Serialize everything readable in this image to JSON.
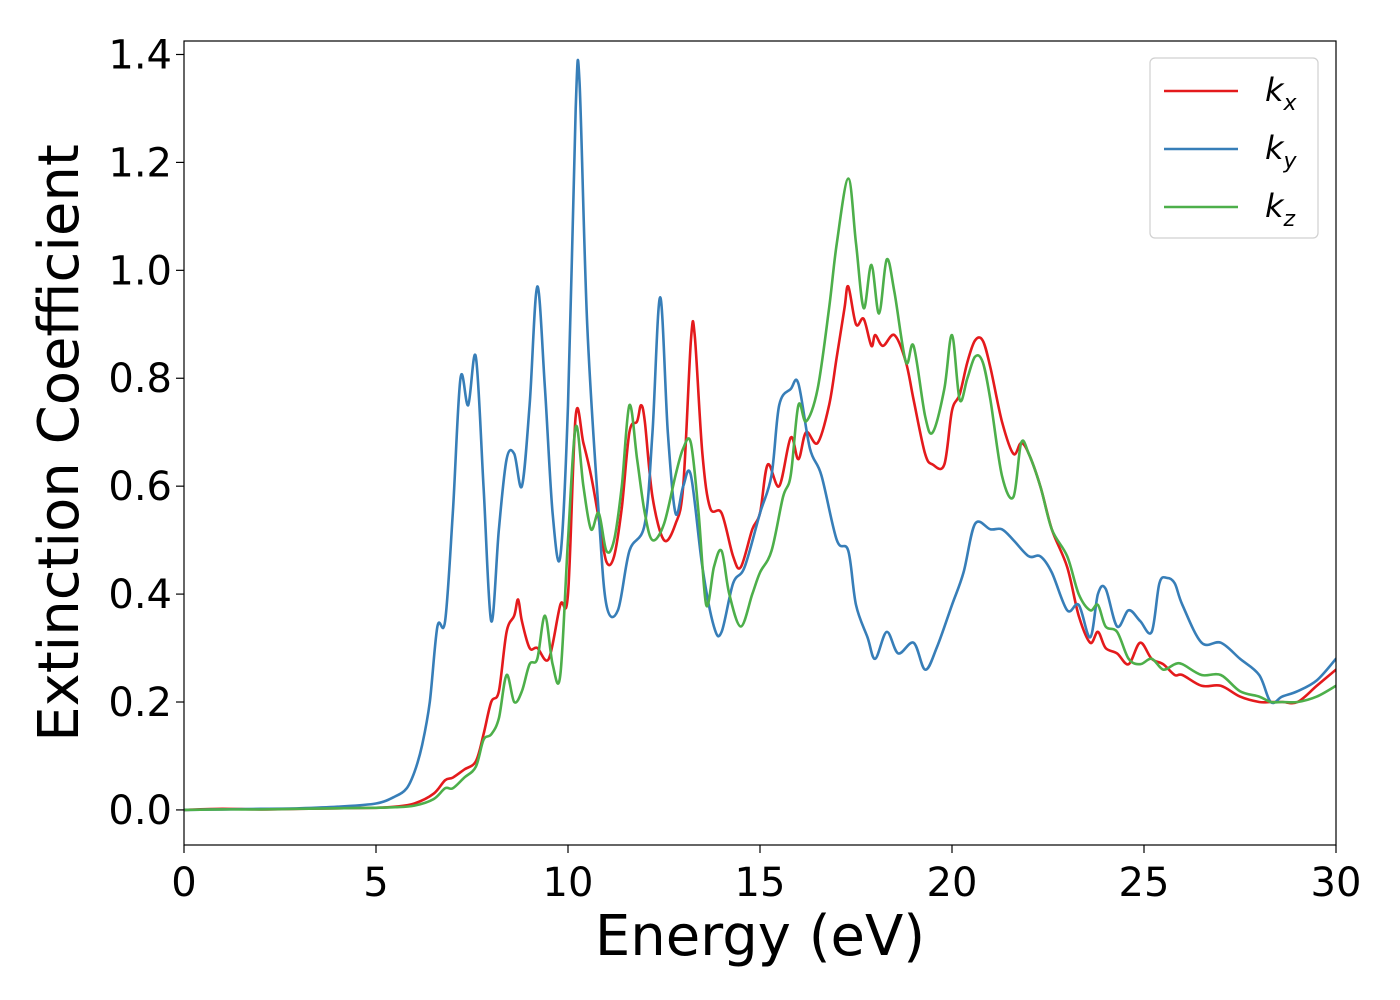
{
  "chart_data": {
    "type": "line",
    "title": "",
    "xlabel": "Energy (eV)",
    "ylabel": "Extinction Coefficient",
    "xlim": [
      0,
      30
    ],
    "ylim": [
      -0.065,
      1.425
    ],
    "xticks": [
      0,
      5,
      10,
      15,
      20,
      25,
      30
    ],
    "xtick_labels": [
      "0",
      "5",
      "10",
      "15",
      "20",
      "25",
      "30"
    ],
    "yticks": [
      0.0,
      0.2,
      0.4,
      0.6,
      0.8,
      1.0,
      1.2,
      1.4
    ],
    "ytick_labels": [
      "0.0",
      "0.2",
      "0.4",
      "0.6",
      "0.8",
      "1.0",
      "1.2",
      "1.4"
    ],
    "grid": false,
    "legend_position": "top-right",
    "legend": [
      {
        "base": "k",
        "sub": "x"
      },
      {
        "base": "k",
        "sub": "y"
      },
      {
        "base": "k",
        "sub": "z"
      }
    ],
    "series": [
      {
        "color": "#e41a1c",
        "x": [
          0,
          1,
          2,
          3,
          4,
          5,
          5.5,
          6.0,
          6.5,
          6.8,
          7.0,
          7.3,
          7.6,
          7.8,
          8.0,
          8.2,
          8.4,
          8.6,
          8.7,
          8.8,
          9.0,
          9.2,
          9.5,
          9.8,
          10.0,
          10.2,
          10.4,
          10.6,
          10.8,
          11.0,
          11.2,
          11.4,
          11.6,
          11.8,
          11.9,
          12.0,
          12.2,
          12.5,
          12.8,
          13.0,
          13.2,
          13.3,
          13.5,
          13.7,
          14.0,
          14.3,
          14.5,
          14.8,
          15.0,
          15.2,
          15.5,
          15.8,
          16.0,
          16.2,
          16.5,
          16.8,
          17.0,
          17.2,
          17.3,
          17.5,
          17.7,
          17.9,
          18.0,
          18.2,
          18.5,
          18.8,
          19.0,
          19.3,
          19.5,
          19.8,
          20.0,
          20.2,
          20.4,
          20.6,
          20.8,
          21.0,
          21.3,
          21.6,
          21.8,
          22.0,
          22.3,
          22.6,
          23.0,
          23.3,
          23.6,
          23.8,
          24.0,
          24.3,
          24.6,
          24.9,
          25.2,
          25.5,
          25.8,
          26.0,
          26.5,
          27.0,
          27.5,
          28.0,
          28.3,
          28.6,
          29.0,
          29.5,
          30.0
        ],
        "y": [
          0.0,
          0.002,
          0.001,
          0.002,
          0.003,
          0.004,
          0.006,
          0.012,
          0.03,
          0.055,
          0.06,
          0.075,
          0.09,
          0.14,
          0.2,
          0.22,
          0.33,
          0.36,
          0.39,
          0.35,
          0.3,
          0.3,
          0.28,
          0.38,
          0.4,
          0.73,
          0.68,
          0.62,
          0.54,
          0.46,
          0.47,
          0.56,
          0.7,
          0.72,
          0.75,
          0.72,
          0.58,
          0.5,
          0.53,
          0.6,
          0.87,
          0.88,
          0.66,
          0.56,
          0.55,
          0.47,
          0.45,
          0.52,
          0.55,
          0.64,
          0.6,
          0.69,
          0.65,
          0.7,
          0.68,
          0.75,
          0.84,
          0.93,
          0.97,
          0.9,
          0.91,
          0.86,
          0.88,
          0.86,
          0.88,
          0.83,
          0.76,
          0.66,
          0.64,
          0.64,
          0.74,
          0.77,
          0.83,
          0.87,
          0.87,
          0.82,
          0.72,
          0.66,
          0.68,
          0.66,
          0.6,
          0.52,
          0.45,
          0.36,
          0.31,
          0.33,
          0.3,
          0.29,
          0.27,
          0.31,
          0.28,
          0.27,
          0.25,
          0.25,
          0.23,
          0.23,
          0.21,
          0.2,
          0.2,
          0.2,
          0.2,
          0.23,
          0.26
        ]
      },
      {
        "color": "#377eb8",
        "x": [
          0,
          1,
          2,
          3,
          4,
          5,
          5.5,
          5.8,
          6.0,
          6.2,
          6.4,
          6.6,
          6.8,
          7.0,
          7.2,
          7.4,
          7.6,
          7.8,
          8.0,
          8.2,
          8.4,
          8.6,
          8.8,
          9.0,
          9.2,
          9.4,
          9.6,
          9.8,
          10.0,
          10.2,
          10.3,
          10.5,
          10.8,
          11.0,
          11.3,
          11.6,
          12.0,
          12.2,
          12.4,
          12.6,
          12.8,
          13.0,
          13.2,
          13.5,
          13.8,
          14.0,
          14.3,
          14.6,
          15.0,
          15.3,
          15.5,
          15.8,
          16.0,
          16.3,
          16.6,
          17.0,
          17.3,
          17.5,
          17.8,
          18.0,
          18.3,
          18.6,
          19.0,
          19.3,
          19.6,
          20.0,
          20.3,
          20.6,
          21.0,
          21.3,
          21.6,
          22.0,
          22.3,
          22.6,
          23.0,
          23.3,
          23.6,
          23.8,
          24.0,
          24.3,
          24.6,
          24.9,
          25.2,
          25.4,
          25.6,
          25.8,
          26.0,
          26.5,
          27.0,
          27.5,
          28.0,
          28.3,
          28.6,
          29.0,
          29.5,
          30.0
        ],
        "y": [
          0.0,
          0.001,
          0.002,
          0.003,
          0.006,
          0.012,
          0.025,
          0.04,
          0.07,
          0.12,
          0.2,
          0.34,
          0.35,
          0.55,
          0.8,
          0.75,
          0.84,
          0.6,
          0.35,
          0.52,
          0.65,
          0.66,
          0.6,
          0.75,
          0.97,
          0.78,
          0.55,
          0.47,
          0.75,
          1.3,
          1.35,
          0.9,
          0.55,
          0.38,
          0.37,
          0.48,
          0.53,
          0.7,
          0.95,
          0.7,
          0.55,
          0.6,
          0.62,
          0.45,
          0.34,
          0.33,
          0.42,
          0.45,
          0.55,
          0.62,
          0.75,
          0.78,
          0.79,
          0.67,
          0.62,
          0.5,
          0.48,
          0.38,
          0.32,
          0.28,
          0.33,
          0.29,
          0.31,
          0.26,
          0.3,
          0.38,
          0.44,
          0.53,
          0.52,
          0.52,
          0.5,
          0.47,
          0.47,
          0.44,
          0.37,
          0.38,
          0.32,
          0.4,
          0.41,
          0.34,
          0.37,
          0.35,
          0.33,
          0.42,
          0.43,
          0.42,
          0.38,
          0.31,
          0.31,
          0.28,
          0.25,
          0.2,
          0.21,
          0.22,
          0.24,
          0.28
        ]
      },
      {
        "color": "#4daf4a",
        "x": [
          0,
          1,
          2,
          3,
          4,
          5,
          5.5,
          6.0,
          6.5,
          6.8,
          7.0,
          7.3,
          7.6,
          7.8,
          8.0,
          8.2,
          8.4,
          8.6,
          8.8,
          9.0,
          9.2,
          9.4,
          9.6,
          9.8,
          10.0,
          10.2,
          10.4,
          10.6,
          10.8,
          11.0,
          11.2,
          11.4,
          11.6,
          11.8,
          12.0,
          12.2,
          12.5,
          12.8,
          13.0,
          13.2,
          13.4,
          13.6,
          13.8,
          14.0,
          14.2,
          14.5,
          14.8,
          15.0,
          15.3,
          15.6,
          15.8,
          16.0,
          16.2,
          16.5,
          16.8,
          17.0,
          17.3,
          17.5,
          17.7,
          17.9,
          18.1,
          18.3,
          18.5,
          18.8,
          19.0,
          19.3,
          19.5,
          19.8,
          20.0,
          20.2,
          20.4,
          20.6,
          20.8,
          21.0,
          21.3,
          21.6,
          21.8,
          22.0,
          22.3,
          22.6,
          23.0,
          23.3,
          23.6,
          23.8,
          24.0,
          24.3,
          24.6,
          24.9,
          25.2,
          25.5,
          25.8,
          26.0,
          26.5,
          27.0,
          27.5,
          28.0,
          28.3,
          28.6,
          29.0,
          29.5,
          30.0
        ],
        "y": [
          0.0,
          0.001,
          0.001,
          0.002,
          0.003,
          0.004,
          0.005,
          0.008,
          0.02,
          0.04,
          0.04,
          0.06,
          0.08,
          0.13,
          0.14,
          0.17,
          0.25,
          0.2,
          0.22,
          0.27,
          0.28,
          0.36,
          0.27,
          0.25,
          0.5,
          0.71,
          0.6,
          0.52,
          0.55,
          0.48,
          0.5,
          0.6,
          0.75,
          0.65,
          0.55,
          0.5,
          0.53,
          0.62,
          0.67,
          0.68,
          0.55,
          0.38,
          0.45,
          0.48,
          0.4,
          0.34,
          0.4,
          0.44,
          0.48,
          0.58,
          0.62,
          0.75,
          0.72,
          0.78,
          0.93,
          1.05,
          1.17,
          1.05,
          0.93,
          1.01,
          0.92,
          1.02,
          0.96,
          0.83,
          0.86,
          0.73,
          0.7,
          0.78,
          0.88,
          0.76,
          0.8,
          0.84,
          0.83,
          0.76,
          0.62,
          0.58,
          0.68,
          0.66,
          0.6,
          0.52,
          0.47,
          0.4,
          0.37,
          0.38,
          0.34,
          0.33,
          0.28,
          0.27,
          0.28,
          0.26,
          0.27,
          0.27,
          0.25,
          0.25,
          0.22,
          0.21,
          0.2,
          0.2,
          0.2,
          0.21,
          0.23
        ]
      }
    ]
  }
}
